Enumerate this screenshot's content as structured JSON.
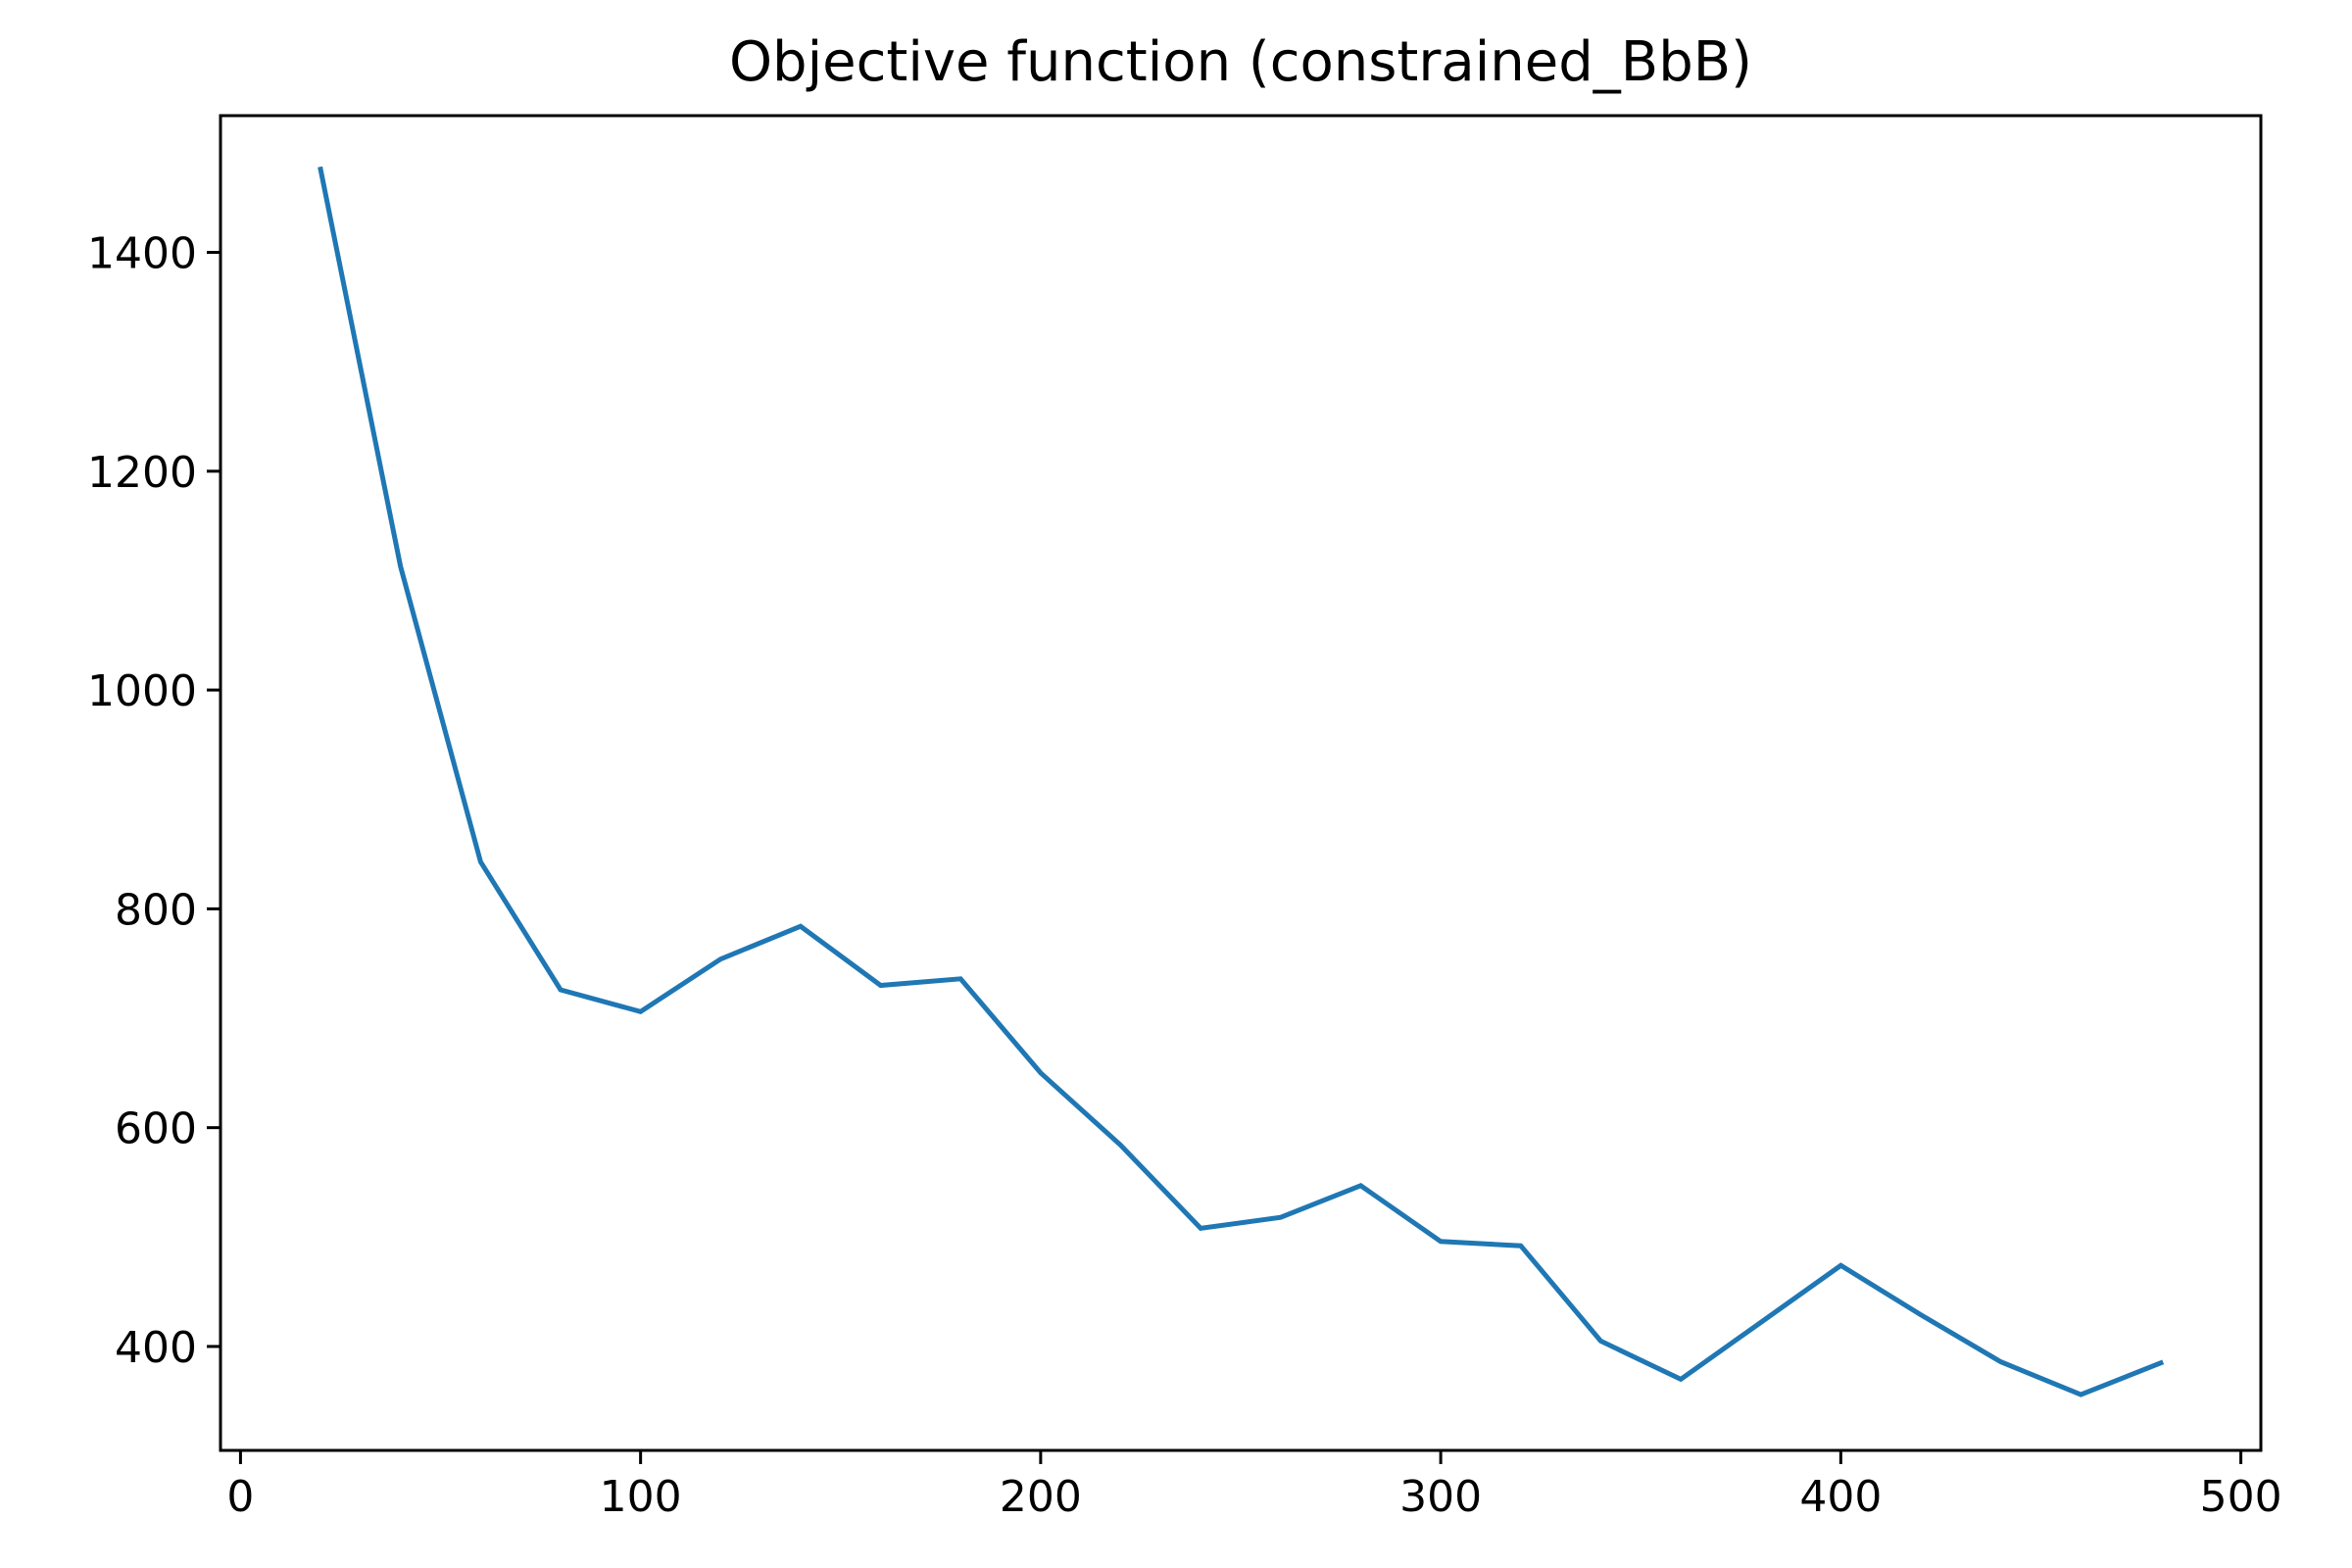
{
  "chart_data": {
    "type": "line",
    "title": "Objective function (constrained_BbB)",
    "xlabel": "",
    "ylabel": "",
    "xlim": [
      -5,
      505
    ],
    "ylim": [
      305,
      1525
    ],
    "grid": false,
    "x_ticks": [
      0,
      100,
      200,
      300,
      400,
      500
    ],
    "y_ticks": [
      400,
      600,
      800,
      1000,
      1200,
      1400
    ],
    "series": [
      {
        "name": "objective",
        "color": "#1f77b4",
        "x": [
          20,
          40,
          60,
          80,
          100,
          120,
          140,
          160,
          180,
          200,
          220,
          240,
          260,
          280,
          300,
          320,
          340,
          360,
          380,
          400,
          420,
          440,
          460,
          480
        ],
        "y": [
          1476,
          1113,
          843,
          726,
          706,
          754,
          784,
          730,
          736,
          650,
          584,
          508,
          518,
          547,
          496,
          492,
          405,
          370,
          422,
          474,
          429,
          386,
          356,
          385
        ]
      }
    ]
  }
}
